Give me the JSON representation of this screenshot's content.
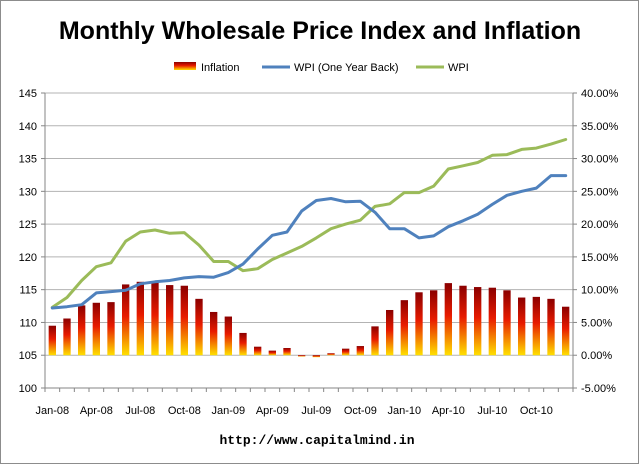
{
  "chart_data": {
    "type": "bar+line",
    "title": "Monthly Wholesale Price Index and Inflation",
    "source": "http://www.capitalmind.in",
    "legend": {
      "placement": "top-center",
      "entries": [
        "Inflation",
        "WPI (One Year Back)",
        "WPI"
      ]
    },
    "colors": {
      "wpi": "#9bbb59",
      "wpi_back": "#4f81bd",
      "bar_top": "#8b0000",
      "bar_mid": "#e81b00",
      "bar_bottom": "#ffe000",
      "grid": "#b3b3b3",
      "axis": "#868686"
    },
    "left_axis": {
      "min": 100,
      "max": 145,
      "step": 5,
      "ticks": [
        "100",
        "105",
        "110",
        "115",
        "120",
        "125",
        "130",
        "135",
        "140",
        "145"
      ]
    },
    "right_axis": {
      "min": -5,
      "max": 40,
      "step": 5,
      "ticks": [
        "-5.00%",
        "0.00%",
        "5.00%",
        "10.00%",
        "15.00%",
        "20.00%",
        "25.00%",
        "30.00%",
        "35.00%",
        "40.00%"
      ]
    },
    "x_tick_labels": [
      {
        "index": 0,
        "label": "Jan-08"
      },
      {
        "index": 3,
        "label": "Apr-08"
      },
      {
        "index": 6,
        "label": "Jul-08"
      },
      {
        "index": 9,
        "label": "Oct-08"
      },
      {
        "index": 12,
        "label": "Jan-09"
      },
      {
        "index": 15,
        "label": "Apr-09"
      },
      {
        "index": 18,
        "label": "Jul-09"
      },
      {
        "index": 21,
        "label": "Oct-09"
      },
      {
        "index": 24,
        "label": "Jan-10"
      },
      {
        "index": 27,
        "label": "Apr-10"
      },
      {
        "index": 30,
        "label": "Jul-10"
      },
      {
        "index": 33,
        "label": "Oct-10"
      }
    ],
    "months": [
      "Jan-08",
      "Feb-08",
      "Mar-08",
      "Apr-08",
      "May-08",
      "Jun-08",
      "Jul-08",
      "Aug-08",
      "Sep-08",
      "Oct-08",
      "Nov-08",
      "Dec-08",
      "Jan-09",
      "Feb-09",
      "Mar-09",
      "Apr-09",
      "May-09",
      "Jun-09",
      "Jul-09",
      "Aug-09",
      "Sep-09",
      "Oct-09",
      "Nov-09",
      "Dec-09",
      "Jan-10",
      "Feb-10",
      "Mar-10",
      "Apr-10",
      "May-10",
      "Jun-10",
      "Jul-10",
      "Aug-10",
      "Sep-10",
      "Oct-10",
      "Nov-10",
      "Dec-10"
    ],
    "series": [
      {
        "name": "WPI",
        "axis": "left",
        "values": [
          112.3,
          113.8,
          116.4,
          118.5,
          119.1,
          122.4,
          123.8,
          124.1,
          123.6,
          123.7,
          121.8,
          119.3,
          119.3,
          117.9,
          118.2,
          119.6,
          120.6,
          121.6,
          122.9,
          124.3,
          125.0,
          125.6,
          127.7,
          128.1,
          129.8,
          129.8,
          130.8,
          133.4,
          133.9,
          134.4,
          135.5,
          135.6,
          136.4,
          136.6,
          137.2,
          137.9
        ]
      },
      {
        "name": "WPI (One Year Back)",
        "axis": "left",
        "values": [
          112.2,
          112.4,
          112.7,
          114.5,
          114.7,
          114.9,
          115.9,
          116.2,
          116.4,
          116.8,
          117.0,
          116.9,
          117.6,
          118.9,
          121.2,
          123.3,
          123.8,
          127.0,
          128.6,
          128.9,
          128.4,
          128.5,
          126.8,
          124.3,
          124.3,
          122.9,
          123.2,
          124.6,
          125.5,
          126.5,
          128.0,
          129.4,
          130.0,
          130.5,
          132.4,
          132.4
        ]
      },
      {
        "name": "Inflation",
        "axis": "right",
        "type": "bar",
        "values": [
          4.5,
          5.6,
          7.6,
          8.0,
          8.1,
          10.8,
          11.2,
          11.2,
          10.7,
          10.6,
          8.6,
          6.6,
          5.9,
          3.4,
          1.3,
          0.7,
          1.1,
          -0.2,
          -0.3,
          0.3,
          1.0,
          1.4,
          4.4,
          6.9,
          8.4,
          9.6,
          9.9,
          11.0,
          10.6,
          10.4,
          10.3,
          9.9,
          8.8,
          8.9,
          8.6,
          7.4
        ]
      }
    ]
  }
}
